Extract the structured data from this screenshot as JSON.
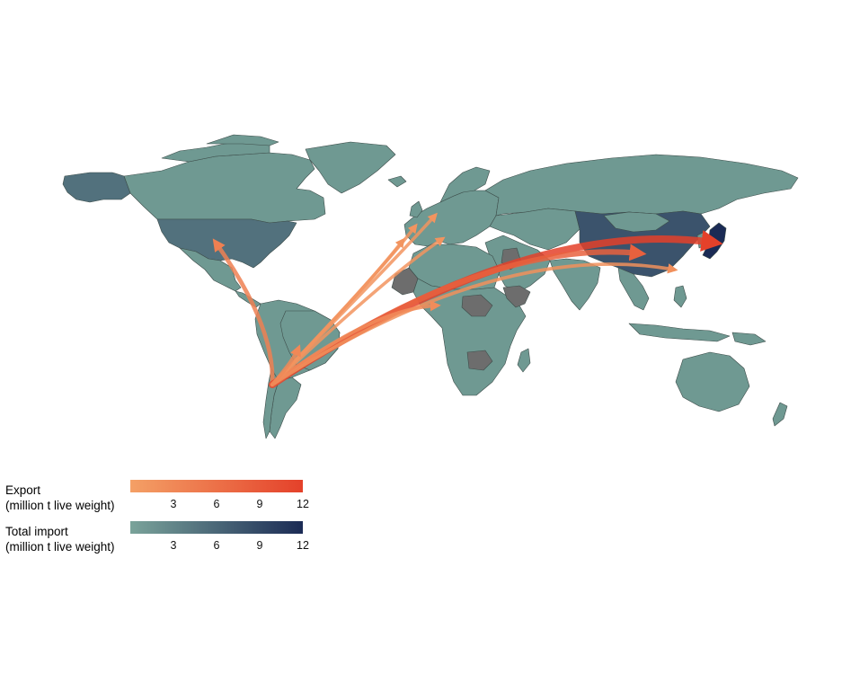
{
  "legend": {
    "export": {
      "title_line1": "Export",
      "title_line2": "(million t live weight)",
      "colors": [
        "#f4a066",
        "#e4412a"
      ],
      "min": 0,
      "max": 12,
      "ticks": [
        "3",
        "6",
        "9",
        "12"
      ]
    },
    "import": {
      "title_line1": "Total import",
      "title_line2": "(million t live weight)",
      "colors": [
        "#7aa39a",
        "#1b2b55"
      ],
      "min": 0,
      "max": 12,
      "ticks": [
        "3",
        "6",
        "9",
        "12"
      ]
    }
  },
  "map": {
    "origin": "Chile",
    "colors": {
      "ocean": "#ffffff",
      "land_default": "#6f9992",
      "land_no_data": "#6d6d6d",
      "border": "#3d4d4a"
    },
    "importers": [
      {
        "name": "United States",
        "total_import": 5.0
      },
      {
        "name": "Japan",
        "total_import": 12.0
      },
      {
        "name": "China",
        "total_import": 8.0
      },
      {
        "name": "Alaska (United States)",
        "total_import": 5.0
      }
    ],
    "flows": [
      {
        "to": "United States",
        "export": 4.0
      },
      {
        "to": "Japan",
        "export": 12.0
      },
      {
        "to": "China",
        "export": 8.0
      },
      {
        "to": "Taiwan",
        "export": 2.0
      },
      {
        "to": "Spain",
        "export": 1.5
      },
      {
        "to": "France",
        "export": 1.5
      },
      {
        "to": "Italy",
        "export": 1.5
      },
      {
        "to": "Germany",
        "export": 1.5
      },
      {
        "to": "Nigeria",
        "export": 2.5
      },
      {
        "to": "Brazil",
        "export": 3.0
      }
    ]
  }
}
